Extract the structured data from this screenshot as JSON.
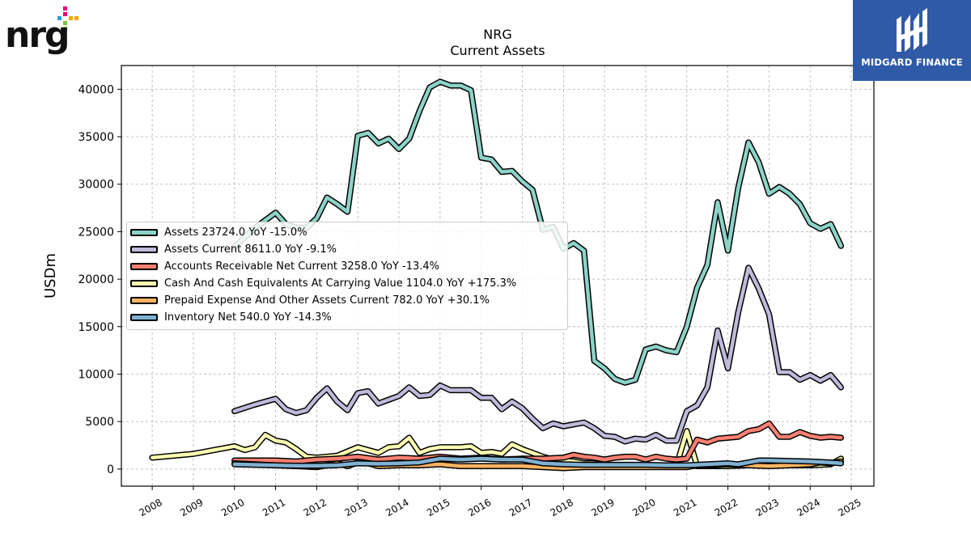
{
  "logos": {
    "left_wordmark": "nrg",
    "right_brand": "MIDGARD FINANCE"
  },
  "chart_data": {
    "type": "line",
    "title": "NRG",
    "subtitle": "Current  Assets",
    "xlabel": "",
    "ylabel": "USDm",
    "xlim": [
      2007.25,
      2025.55
    ],
    "ylim": [
      -1800,
      42500
    ],
    "grid": true,
    "legend_placement": "center-left",
    "x_ticks": [
      "2008",
      "2009",
      "2010",
      "2011",
      "2012",
      "2013",
      "2014",
      "2015",
      "2016",
      "2017",
      "2018",
      "2019",
      "2020",
      "2021",
      "2022",
      "2023",
      "2024",
      "2025"
    ],
    "y_ticks": [
      "0",
      "5000",
      "10000",
      "15000",
      "20000",
      "25000",
      "30000",
      "35000",
      "40000"
    ],
    "series": [
      {
        "name": "Assets  23724.0 YoY -15.0%",
        "color": "#8dd3c7",
        "points": [
          [
            2010.0,
            23400
          ],
          [
            2010.5,
            25400
          ],
          [
            2011.0,
            27000
          ],
          [
            2011.25,
            25800
          ],
          [
            2011.5,
            25400
          ],
          [
            2011.75,
            25400
          ],
          [
            2012.0,
            26400
          ],
          [
            2012.25,
            28600
          ],
          [
            2012.5,
            27900
          ],
          [
            2012.75,
            27100
          ],
          [
            2013.0,
            35100
          ],
          [
            2013.25,
            35400
          ],
          [
            2013.5,
            34300
          ],
          [
            2013.75,
            34800
          ],
          [
            2014.0,
            33700
          ],
          [
            2014.25,
            34800
          ],
          [
            2014.5,
            37700
          ],
          [
            2014.75,
            40200
          ],
          [
            2015.0,
            40800
          ],
          [
            2015.25,
            40400
          ],
          [
            2015.5,
            40400
          ],
          [
            2015.75,
            39900
          ],
          [
            2016.0,
            32800
          ],
          [
            2016.25,
            32600
          ],
          [
            2016.5,
            31300
          ],
          [
            2016.75,
            31400
          ],
          [
            2017.0,
            30300
          ],
          [
            2017.25,
            29400
          ],
          [
            2017.5,
            25200
          ],
          [
            2017.75,
            25500
          ],
          [
            2018.0,
            23200
          ],
          [
            2018.25,
            23800
          ],
          [
            2018.5,
            23000
          ],
          [
            2018.75,
            11400
          ],
          [
            2019.0,
            10600
          ],
          [
            2019.25,
            9500
          ],
          [
            2019.5,
            9100
          ],
          [
            2019.75,
            9400
          ],
          [
            2020.0,
            12600
          ],
          [
            2020.25,
            12900
          ],
          [
            2020.5,
            12500
          ],
          [
            2020.75,
            12300
          ],
          [
            2021.0,
            15000
          ],
          [
            2021.25,
            19100
          ],
          [
            2021.5,
            21500
          ],
          [
            2021.75,
            28100
          ],
          [
            2022.0,
            23000
          ],
          [
            2022.25,
            29600
          ],
          [
            2022.5,
            34400
          ],
          [
            2022.75,
            32300
          ],
          [
            2023.0,
            29000
          ],
          [
            2023.25,
            29700
          ],
          [
            2023.5,
            29000
          ],
          [
            2023.75,
            27900
          ],
          [
            2024.0,
            25900
          ],
          [
            2024.25,
            25300
          ],
          [
            2024.5,
            25800
          ],
          [
            2024.75,
            23500
          ]
        ]
      },
      {
        "name": "Assets Current  8611.0 YoY -9.1%",
        "color": "#bebada",
        "points": [
          [
            2010.0,
            6100
          ],
          [
            2010.5,
            6800
          ],
          [
            2011.0,
            7400
          ],
          [
            2011.25,
            6300
          ],
          [
            2011.5,
            5900
          ],
          [
            2011.75,
            6200
          ],
          [
            2012.0,
            7500
          ],
          [
            2012.25,
            8500
          ],
          [
            2012.5,
            7100
          ],
          [
            2012.75,
            6200
          ],
          [
            2013.0,
            8000
          ],
          [
            2013.25,
            8200
          ],
          [
            2013.5,
            6900
          ],
          [
            2013.75,
            7300
          ],
          [
            2014.0,
            7700
          ],
          [
            2014.25,
            8600
          ],
          [
            2014.5,
            7700
          ],
          [
            2014.75,
            7800
          ],
          [
            2015.0,
            8800
          ],
          [
            2015.25,
            8300
          ],
          [
            2015.5,
            8300
          ],
          [
            2015.75,
            8300
          ],
          [
            2016.0,
            7500
          ],
          [
            2016.25,
            7500
          ],
          [
            2016.5,
            6300
          ],
          [
            2016.75,
            7100
          ],
          [
            2017.0,
            6400
          ],
          [
            2017.25,
            5300
          ],
          [
            2017.5,
            4300
          ],
          [
            2017.75,
            4800
          ],
          [
            2018.0,
            4500
          ],
          [
            2018.25,
            4700
          ],
          [
            2018.5,
            4900
          ],
          [
            2018.75,
            4300
          ],
          [
            2019.0,
            3500
          ],
          [
            2019.25,
            3400
          ],
          [
            2019.5,
            2900
          ],
          [
            2019.75,
            3200
          ],
          [
            2020.0,
            3100
          ],
          [
            2020.25,
            3600
          ],
          [
            2020.5,
            3000
          ],
          [
            2020.75,
            3000
          ],
          [
            2021.0,
            6100
          ],
          [
            2021.25,
            6700
          ],
          [
            2021.5,
            8600
          ],
          [
            2021.75,
            14600
          ],
          [
            2022.0,
            10600
          ],
          [
            2022.25,
            16500
          ],
          [
            2022.5,
            21200
          ],
          [
            2022.75,
            19000
          ],
          [
            2023.0,
            16300
          ],
          [
            2023.25,
            10200
          ],
          [
            2023.5,
            10200
          ],
          [
            2023.75,
            9400
          ],
          [
            2024.0,
            9900
          ],
          [
            2024.25,
            9300
          ],
          [
            2024.5,
            9900
          ],
          [
            2024.75,
            8600
          ]
        ]
      },
      {
        "name": "Accounts Receivable Net Current  3258.0 YoY -13.4%",
        "color": "#fb8072",
        "points": [
          [
            2010.0,
            900
          ],
          [
            2011.0,
            900
          ],
          [
            2011.5,
            800
          ],
          [
            2012.0,
            1000
          ],
          [
            2012.5,
            1100
          ],
          [
            2013.0,
            1300
          ],
          [
            2013.5,
            1000
          ],
          [
            2014.0,
            1200
          ],
          [
            2014.5,
            1100
          ],
          [
            2015.0,
            1300
          ],
          [
            2015.5,
            1100
          ],
          [
            2016.0,
            1200
          ],
          [
            2016.5,
            1000
          ],
          [
            2017.0,
            1100
          ],
          [
            2017.5,
            1100
          ],
          [
            2018.0,
            1200
          ],
          [
            2018.25,
            1500
          ],
          [
            2018.5,
            1300
          ],
          [
            2018.75,
            1200
          ],
          [
            2019.0,
            1000
          ],
          [
            2019.25,
            1200
          ],
          [
            2019.5,
            1300
          ],
          [
            2019.75,
            1300
          ],
          [
            2020.0,
            1000
          ],
          [
            2020.25,
            1300
          ],
          [
            2020.5,
            1100
          ],
          [
            2020.75,
            1000
          ],
          [
            2021.0,
            1100
          ],
          [
            2021.25,
            3100
          ],
          [
            2021.5,
            2800
          ],
          [
            2021.75,
            3200
          ],
          [
            2022.0,
            3300
          ],
          [
            2022.25,
            3400
          ],
          [
            2022.5,
            4000
          ],
          [
            2022.75,
            4200
          ],
          [
            2023.0,
            4800
          ],
          [
            2023.25,
            3400
          ],
          [
            2023.5,
            3400
          ],
          [
            2023.75,
            3900
          ],
          [
            2024.0,
            3500
          ],
          [
            2024.25,
            3300
          ],
          [
            2024.5,
            3400
          ],
          [
            2024.75,
            3300
          ]
        ]
      },
      {
        "name": "Cash And Cash Equivalents At Carrying Value  1104.0 YoY +175.3%",
        "color": "#ffffb3",
        "points": [
          [
            2008.0,
            1200
          ],
          [
            2009.0,
            1600
          ],
          [
            2010.0,
            2400
          ],
          [
            2010.25,
            2000
          ],
          [
            2010.5,
            2300
          ],
          [
            2010.75,
            3600
          ],
          [
            2011.0,
            3000
          ],
          [
            2011.25,
            2800
          ],
          [
            2011.5,
            2100
          ],
          [
            2011.75,
            1300
          ],
          [
            2012.0,
            1200
          ],
          [
            2012.5,
            1400
          ],
          [
            2013.0,
            2300
          ],
          [
            2013.5,
            1700
          ],
          [
            2013.75,
            2300
          ],
          [
            2014.0,
            2400
          ],
          [
            2014.25,
            3300
          ],
          [
            2014.5,
            1700
          ],
          [
            2014.75,
            2100
          ],
          [
            2015.0,
            2300
          ],
          [
            2015.5,
            2300
          ],
          [
            2015.75,
            2400
          ],
          [
            2016.0,
            1700
          ],
          [
            2016.25,
            1800
          ],
          [
            2016.5,
            1600
          ],
          [
            2016.75,
            2600
          ],
          [
            2017.0,
            2100
          ],
          [
            2017.25,
            1700
          ],
          [
            2017.5,
            1300
          ],
          [
            2017.75,
            1000
          ],
          [
            2018.0,
            900
          ],
          [
            2018.25,
            800
          ],
          [
            2018.5,
            600
          ],
          [
            2018.75,
            600
          ],
          [
            2019.0,
            400
          ],
          [
            2019.5,
            400
          ],
          [
            2020.0,
            400
          ],
          [
            2020.5,
            400
          ],
          [
            2020.75,
            400
          ],
          [
            2021.0,
            4000
          ],
          [
            2021.25,
            300
          ],
          [
            2021.5,
            300
          ],
          [
            2022.0,
            300
          ],
          [
            2022.5,
            400
          ],
          [
            2023.0,
            400
          ],
          [
            2023.5,
            400
          ],
          [
            2024.0,
            400
          ],
          [
            2024.5,
            500
          ],
          [
            2024.75,
            1100
          ]
        ]
      },
      {
        "name": "Prepaid Expense And Other Assets Current  782.0 YoY +30.1%",
        "color": "#fdb462",
        "points": [
          [
            2010.0,
            600
          ],
          [
            2011.0,
            400
          ],
          [
            2011.5,
            300
          ],
          [
            2012.0,
            200
          ],
          [
            2012.25,
            400
          ],
          [
            2012.5,
            600
          ],
          [
            2012.75,
            300
          ],
          [
            2013.0,
            700
          ],
          [
            2013.25,
            600
          ],
          [
            2013.5,
            300
          ],
          [
            2014.0,
            400
          ],
          [
            2014.5,
            400
          ],
          [
            2015.0,
            500
          ],
          [
            2015.5,
            300
          ],
          [
            2016.0,
            300
          ],
          [
            2016.5,
            300
          ],
          [
            2017.0,
            300
          ],
          [
            2017.5,
            200
          ],
          [
            2018.0,
            100
          ],
          [
            2018.5,
            200
          ],
          [
            2019.0,
            200
          ],
          [
            2019.5,
            200
          ],
          [
            2020.0,
            200
          ],
          [
            2020.5,
            200
          ],
          [
            2021.0,
            200
          ],
          [
            2021.25,
            400
          ],
          [
            2021.5,
            400
          ],
          [
            2022.0,
            500
          ],
          [
            2022.5,
            400
          ],
          [
            2023.0,
            300
          ],
          [
            2023.5,
            400
          ],
          [
            2024.0,
            500
          ],
          [
            2024.25,
            700
          ],
          [
            2024.5,
            600
          ],
          [
            2024.75,
            800
          ]
        ]
      },
      {
        "name": "Inventory Net  540.0 YoY -14.3%",
        "color": "#80b1d3",
        "points": [
          [
            2010.0,
            500
          ],
          [
            2011.0,
            400
          ],
          [
            2011.5,
            350
          ],
          [
            2012.0,
            350
          ],
          [
            2012.5,
            400
          ],
          [
            2013.0,
            600
          ],
          [
            2013.5,
            550
          ],
          [
            2014.0,
            600
          ],
          [
            2014.5,
            700
          ],
          [
            2015.0,
            1100
          ],
          [
            2015.5,
            1000
          ],
          [
            2016.0,
            1100
          ],
          [
            2016.5,
            1000
          ],
          [
            2017.0,
            1000
          ],
          [
            2017.5,
            600
          ],
          [
            2018.0,
            500
          ],
          [
            2018.5,
            450
          ],
          [
            2019.0,
            450
          ],
          [
            2019.5,
            450
          ],
          [
            2020.0,
            450
          ],
          [
            2020.5,
            400
          ],
          [
            2021.0,
            400
          ],
          [
            2021.5,
            500
          ],
          [
            2022.0,
            600
          ],
          [
            2022.25,
            500
          ],
          [
            2022.5,
            700
          ],
          [
            2022.75,
            900
          ],
          [
            2023.0,
            900
          ],
          [
            2023.5,
            850
          ],
          [
            2024.0,
            800
          ],
          [
            2024.5,
            700
          ],
          [
            2024.75,
            600
          ]
        ]
      }
    ]
  }
}
